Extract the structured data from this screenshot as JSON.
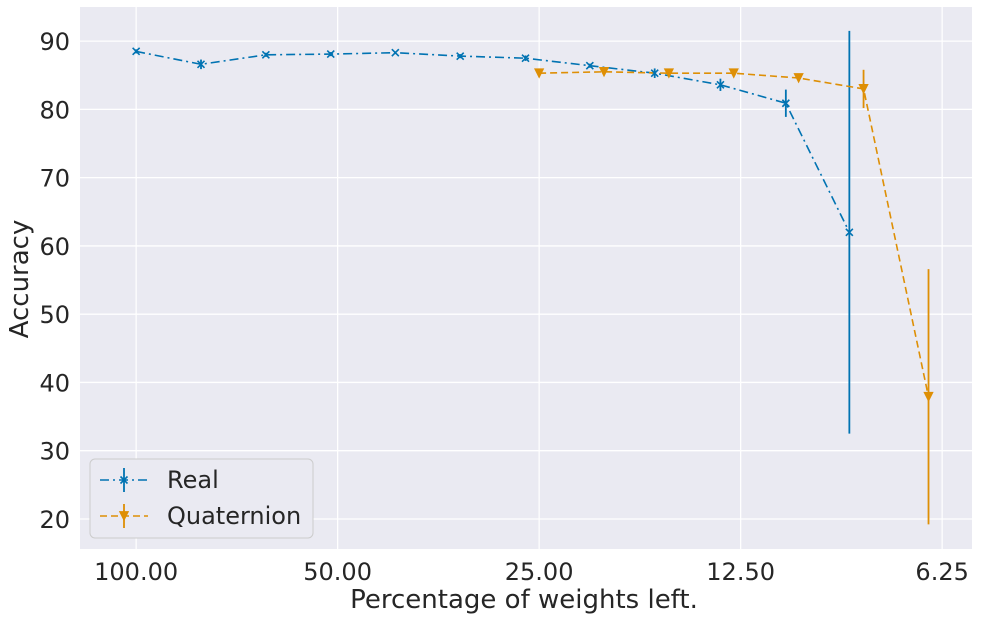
{
  "chart_data": {
    "type": "line",
    "title": "",
    "xlabel": "Percentage of weights left.",
    "ylabel": "Accuracy",
    "x_scale": "log2-reversed",
    "xlim": [
      121.3,
      5.64
    ],
    "ylim": [
      15.6,
      95
    ],
    "x_ticks": [
      100,
      50,
      25,
      12.5,
      6.25
    ],
    "x_tick_labels": [
      "100.00",
      "50.00",
      "25.00",
      "12.50",
      "6.25"
    ],
    "y_ticks": [
      20,
      30,
      40,
      50,
      60,
      70,
      80,
      90
    ],
    "y_tick_labels": [
      "20",
      "30",
      "40",
      "50",
      "60",
      "70",
      "80",
      "90"
    ],
    "grid": true,
    "legend_position": "bottom-left",
    "series": [
      {
        "name": "Real",
        "color": "#0173b2",
        "line_style": "dash-dot",
        "marker": "x",
        "points": [
          {
            "x": 100.0,
            "y": 88.5,
            "err": 0.3
          },
          {
            "x": 80.0,
            "y": 86.6,
            "err": 0.7
          },
          {
            "x": 64.0,
            "y": 88.0,
            "err": 0.3
          },
          {
            "x": 51.2,
            "y": 88.1,
            "err": 0.3
          },
          {
            "x": 41.0,
            "y": 88.3,
            "err": 0.2
          },
          {
            "x": 32.8,
            "y": 87.8,
            "err": 0.3
          },
          {
            "x": 26.2,
            "y": 87.5,
            "err": 0.4
          },
          {
            "x": 21.0,
            "y": 86.4,
            "err": 0.3
          },
          {
            "x": 16.8,
            "y": 85.3,
            "err": 0.7
          },
          {
            "x": 13.4,
            "y": 83.6,
            "err": 0.9
          },
          {
            "x": 10.7,
            "y": 80.9,
            "err": 2.0
          },
          {
            "x": 8.6,
            "y": 62.0,
            "err": 29.5
          }
        ]
      },
      {
        "name": "Quaternion",
        "color": "#de8f05",
        "line_style": "dashed",
        "marker": "triangle-down",
        "points": [
          {
            "x": 25.0,
            "y": 85.3,
            "err": 0.2
          },
          {
            "x": 20.0,
            "y": 85.5,
            "err": 0.2
          },
          {
            "x": 16.0,
            "y": 85.3,
            "err": 0.2
          },
          {
            "x": 12.8,
            "y": 85.3,
            "err": 0.2
          },
          {
            "x": 10.24,
            "y": 84.6,
            "err": 0.3
          },
          {
            "x": 8.19,
            "y": 83.0,
            "err": 2.8
          },
          {
            "x": 6.55,
            "y": 37.9,
            "err": 18.7
          }
        ]
      }
    ]
  }
}
